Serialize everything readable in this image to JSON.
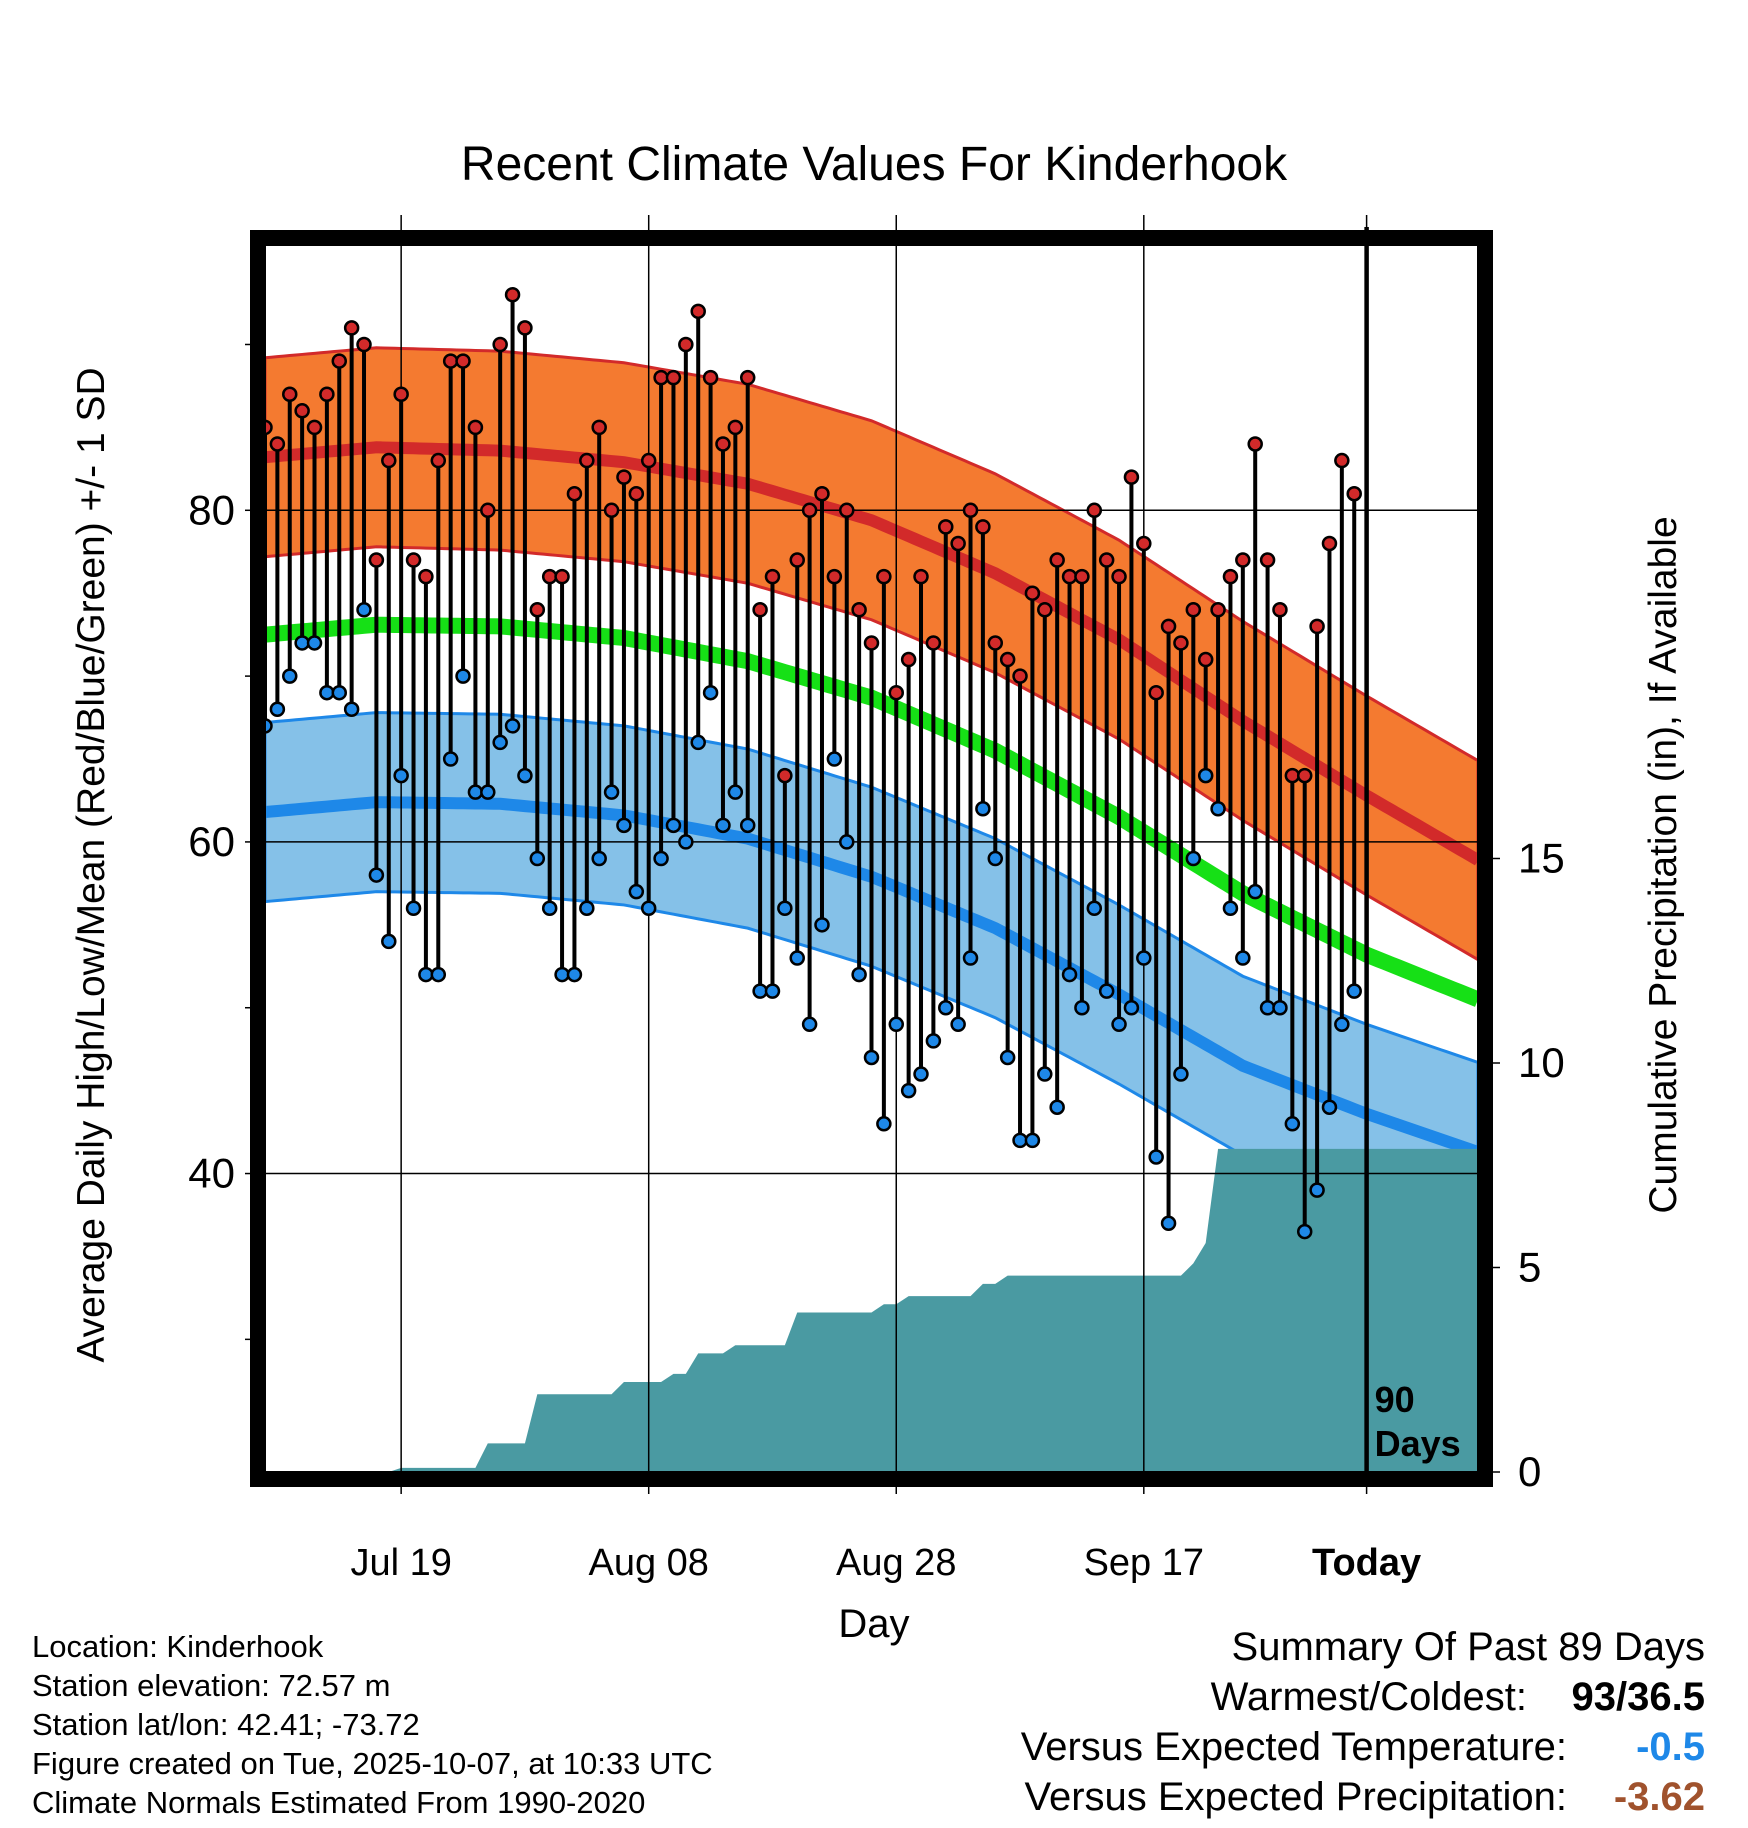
{
  "chart_data": {
    "type": "line",
    "title": "Recent Climate Values For Kinderhook",
    "xlabel": "Day",
    "ylabel": "Average Daily High/Low/Mean (Red/Blue/Green) +/- 1 SD",
    "y2label": "Cumulative Precipitation (in), If Available",
    "ylim": [
      22,
      96
    ],
    "y_ticks": [
      40,
      60,
      80
    ],
    "y2lim": [
      0,
      30
    ],
    "y2_ticks": [
      0,
      5,
      10,
      15
    ],
    "xlim": [
      -89,
      9
    ],
    "x_ticks": [
      {
        "day": -78,
        "label": "Jul 19"
      },
      {
        "day": -58,
        "label": "Aug 08"
      },
      {
        "day": -38,
        "label": "Aug 28"
      },
      {
        "day": -18,
        "label": "Sep 17"
      },
      {
        "day": 0,
        "label": "Today"
      }
    ],
    "window_label": [
      "90",
      "Days"
    ],
    "colors": {
      "high": "#d22a2a",
      "high_band": "#f47a30",
      "low": "#1e88e8",
      "low_band": "#85c1e8",
      "mean": "#16e016",
      "precip": "#4a9aa2"
    },
    "normals": {
      "days": [
        -89,
        -80,
        -70,
        -60,
        -50,
        -40,
        -30,
        -20,
        -10,
        0,
        9
      ],
      "high": [
        83.2,
        83.8,
        83.6,
        82.9,
        81.6,
        79.4,
        76.2,
        72.2,
        67.3,
        62.8,
        58.9
      ],
      "high_sd": 6.0,
      "low": [
        61.8,
        62.4,
        62.3,
        61.6,
        60.2,
        57.9,
        54.8,
        50.8,
        46.5,
        43.6,
        41.3
      ],
      "low_sd": 5.4,
      "mean": [
        72.5,
        73.1,
        73.0,
        72.3,
        70.9,
        68.7,
        65.5,
        61.5,
        56.9,
        53.2,
        50.5
      ]
    },
    "observations": {
      "start_day": -89,
      "high": [
        85,
        84,
        87,
        86,
        85,
        87,
        89,
        91,
        90,
        77,
        83,
        87,
        77,
        76,
        83,
        89,
        89,
        85,
        80,
        90,
        93,
        91,
        74,
        76,
        76,
        81,
        83,
        85,
        80,
        82,
        81,
        83,
        88,
        88,
        90,
        92,
        88,
        84,
        85,
        88,
        74,
        76,
        64,
        77,
        80,
        81,
        76,
        80,
        74,
        72,
        76,
        69,
        71,
        76,
        72,
        79,
        78,
        80,
        79,
        72,
        71,
        70,
        75,
        74,
        77,
        76,
        76,
        80,
        77,
        76,
        82,
        78,
        69,
        73,
        72,
        74,
        71,
        74,
        76,
        77,
        84,
        77,
        74,
        64,
        64,
        73,
        78,
        83,
        81
      ],
      "low": [
        67,
        68,
        70,
        72,
        72,
        69,
        69,
        68,
        74,
        58,
        54,
        64,
        56,
        52,
        52,
        65,
        70,
        63,
        63,
        66,
        67,
        64,
        59,
        56,
        52,
        52,
        56,
        59,
        63,
        61,
        57,
        56,
        59,
        61,
        60,
        66,
        69,
        61,
        63,
        61,
        51,
        51,
        56,
        53,
        49,
        55,
        65,
        60,
        52,
        47,
        43,
        49,
        45,
        46,
        48,
        50,
        49,
        53,
        62,
        59,
        47,
        42,
        42,
        46,
        44,
        52,
        50,
        56,
        51,
        49,
        50,
        53,
        41,
        37,
        46,
        59,
        64,
        62,
        56,
        53,
        57,
        50,
        50,
        43,
        36.5,
        39,
        44,
        49,
        51
      ]
    },
    "precip_cumulative": {
      "days": [
        -89,
        -79,
        -78,
        -72,
        -71,
        -68,
        -67,
        -61,
        -60,
        -57,
        -56,
        -55,
        -54,
        -52,
        -51,
        -47,
        -46,
        -40,
        -39,
        -38,
        -37,
        -32,
        -31,
        -30,
        -29,
        -15,
        -14,
        -13,
        -12,
        -11,
        9
      ],
      "values": [
        0,
        0,
        0.1,
        0.1,
        0.7,
        0.7,
        1.9,
        1.9,
        2.2,
        2.2,
        2.4,
        2.4,
        2.9,
        2.9,
        3.1,
        3.1,
        3.9,
        3.9,
        4.1,
        4.1,
        4.3,
        4.3,
        4.6,
        4.6,
        4.8,
        4.8,
        5.1,
        5.6,
        7.9,
        7.9,
        7.9
      ]
    }
  },
  "info": {
    "location": "Location: Kinderhook",
    "elevation": "Station elevation: 72.57 m",
    "latlon": "Station lat/lon: 42.41; -73.72",
    "created": "Figure created on Tue, 2025-10-07, at 10:33 UTC",
    "normals": "Climate Normals Estimated From 1990-2020"
  },
  "summary": {
    "heading": "Summary Of Past 89 Days",
    "extremes_label": "Warmest/Coldest:",
    "extremes_value": "93/36.5",
    "temp_label": "Versus Expected Temperature:",
    "temp_value": "-0.5",
    "temp_color": "#1e88e8",
    "precip_label": "Versus Expected Precipitation:",
    "precip_value": "-3.62",
    "precip_color": "#a0522d"
  }
}
